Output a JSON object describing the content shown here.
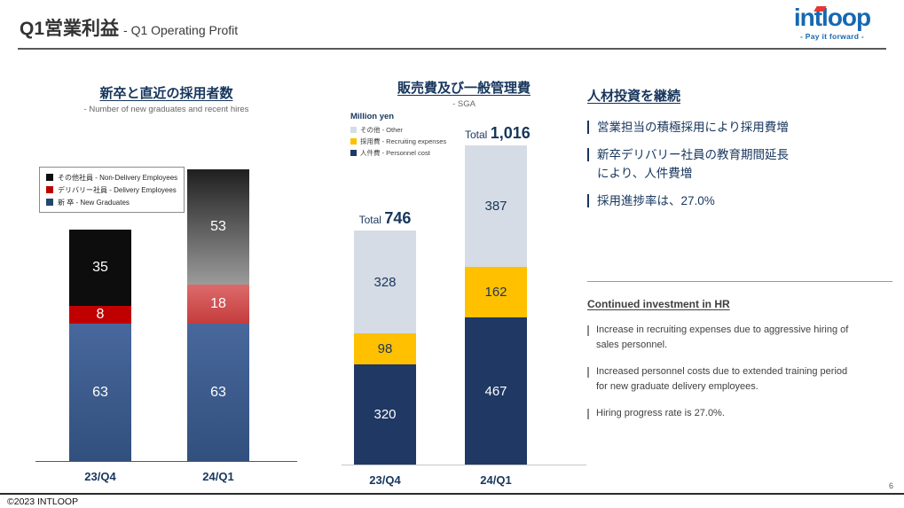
{
  "header": {
    "title_ja": "Q1営業利益",
    "title_en": "- Q1 Operating Profit",
    "logo": {
      "text": "intloop",
      "tagline": "- Pay it forward -",
      "brand_blue": "#1668B2",
      "brand_red": "#E8382F"
    }
  },
  "chart_data": [
    {
      "id": "hires",
      "type": "bar",
      "stacked": true,
      "title": "新卒と直近の採用者数",
      "subtitle": "- Number of new graduates and recent hires",
      "categories": [
        "23/Q4",
        "24/Q1"
      ],
      "series": [
        {
          "key": "new-graduates",
          "name": "新 卒 - New Graduates",
          "values": [
            63,
            63
          ],
          "colors": [
            "#48679C|#31507D",
            "#48679C|#31507D"
          ],
          "label_color": "#FFFFFF"
        },
        {
          "key": "delivery-employees",
          "name": "デリバリー社員 - Delivery Employees",
          "values": [
            8,
            18
          ],
          "colors": [
            "#C00000",
            "#DD6B6B|#C43C3C"
          ],
          "label_color": "#FFFFFF"
        },
        {
          "key": "non-delivery-employees",
          "name": "その他社員 - Non-Delivery Employees",
          "values": [
            35,
            53
          ],
          "colors": [
            "#0D0D0D",
            "#1F1F1F|#9B9B9B"
          ],
          "label_color": "#FFFFFF"
        }
      ],
      "legend": [
        {
          "label": "その他社員 - Non-Delivery Employees",
          "color": "#0D0D0D"
        },
        {
          "label": "デリバリー社員 - Delivery Employees",
          "color": "#C00000"
        },
        {
          "label": "新 卒 - New Graduates",
          "color": "#24466F"
        }
      ],
      "ylim": [
        0,
        140
      ],
      "legend_position": "top-left",
      "grid": false
    },
    {
      "id": "sga",
      "type": "bar",
      "stacked": true,
      "title": "販売費及び一般管理費",
      "subtitle": "- SGA",
      "unit_label": "Million yen",
      "categories": [
        "23/Q4",
        "24/Q1"
      ],
      "total_word": "Total",
      "totals": [
        "746",
        "1,016"
      ],
      "series": [
        {
          "key": "personnel-cost",
          "name": "人件費 - Personnel cost",
          "values": [
            320,
            467
          ],
          "colors": [
            "#1F3864",
            "#1F3864"
          ],
          "label_color": "#FFFFFF"
        },
        {
          "key": "recruiting-expenses",
          "name": "採用費 - Recruiting expenses",
          "values": [
            98,
            162
          ],
          "colors": [
            "#FFC000",
            "#FFC000"
          ],
          "label_color": "#17365D"
        },
        {
          "key": "other",
          "name": "その他 - Other",
          "values": [
            328,
            387
          ],
          "colors": [
            "#D6DCE5",
            "#D6DCE5"
          ],
          "label_color": "#17365D"
        }
      ],
      "legend": [
        {
          "label": "その他 - Other",
          "color": "#D6DCE5"
        },
        {
          "label": "採用費 - Recruiting expenses",
          "color": "#FFC000"
        },
        {
          "label": "人件費 - Personnel cost",
          "color": "#1F3864"
        }
      ],
      "ylim": [
        0,
        1100
      ],
      "legend_position": "top-left",
      "grid": false
    }
  ],
  "right_panel": {
    "jp_heading": "人材投資を継続",
    "jp_bullets": [
      {
        "line1": "営業担当の積極採用により採用費増"
      },
      {
        "line1": "新卒デリバリー社員の教育期間延長",
        "line2": "により、人件費増"
      },
      {
        "line1": "採用進捗率は、27.0%"
      }
    ],
    "en_heading": "Continued investment in HR",
    "en_bullets": [
      "Increase in recruiting expenses due to aggressive hiring of sales personnel.",
      "Increased personnel costs due to extended training period for new graduate delivery employees.",
      "Hiring progress rate is 27.0%."
    ]
  },
  "footer": {
    "copyright": "©2023 INTLOOP",
    "page_number": "6"
  }
}
